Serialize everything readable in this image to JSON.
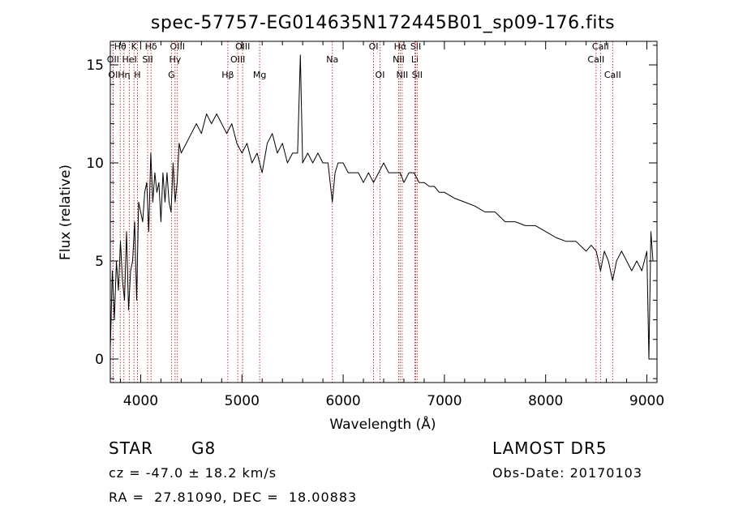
{
  "chart_data": {
    "type": "line",
    "title": "spec-57757-EG014635N172445B01_sp09-176.fits",
    "xlabel": "Wavelength (Å)",
    "ylabel": "Flux (relative)",
    "xlim": [
      3700,
      9100
    ],
    "ylim": [
      -1.2,
      16.2
    ],
    "xticks": [
      "4000",
      "5000",
      "6000",
      "7000",
      "8000",
      "9000"
    ],
    "yticks": [
      "0",
      "5",
      "10",
      "15"
    ],
    "grid": false,
    "line_color": "#000000",
    "marker_color": "#b22222",
    "series": [
      {
        "values_x": [
          3700,
          3720,
          3740,
          3760,
          3780,
          3800,
          3820,
          3840,
          3860,
          3880,
          3900,
          3920,
          3940,
          3960,
          3980,
          4000,
          4020,
          4040,
          4060,
          4080,
          4100,
          4120,
          4140,
          4160,
          4180,
          4200,
          4220,
          4240,
          4260,
          4280,
          4300,
          4320,
          4340,
          4360,
          4380,
          4400,
          4450,
          4500,
          4550,
          4600,
          4650,
          4700,
          4750,
          4800,
          4850,
          4900,
          4950,
          5000,
          5050,
          5100,
          5150,
          5200,
          5250,
          5300,
          5350,
          5400,
          5450,
          5500,
          5550,
          5577,
          5600,
          5650,
          5700,
          5750,
          5800,
          5850,
          5893,
          5920,
          5950,
          6000,
          6050,
          6100,
          6150,
          6200,
          6250,
          6300,
          6350,
          6400,
          6450,
          6500,
          6563,
          6600,
          6650,
          6700,
          6750,
          6800,
          6850,
          6900,
          6950,
          7000,
          7100,
          7200,
          7300,
          7400,
          7500,
          7600,
          7700,
          7800,
          7900,
          8000,
          8100,
          8200,
          8300,
          8400,
          8450,
          8500,
          8542,
          8580,
          8620,
          8662,
          8700,
          8750,
          8800,
          8850,
          8900,
          8950,
          9000,
          9020,
          9040,
          9060
        ],
        "values_y": [
          0.5,
          4.5,
          2.0,
          5.0,
          3.5,
          6.0,
          4.0,
          3.0,
          6.5,
          2.5,
          4.5,
          5.0,
          7.0,
          3.0,
          8.0,
          7.5,
          7.0,
          8.5,
          9.0,
          6.5,
          10.5,
          8.0,
          9.5,
          8.5,
          9.0,
          7.0,
          9.5,
          8.0,
          9.5,
          8.0,
          7.5,
          10.0,
          8.0,
          9.0,
          11.0,
          10.5,
          11.0,
          11.5,
          12.0,
          11.5,
          12.5,
          12.0,
          12.5,
          12.0,
          11.5,
          12.0,
          11.0,
          10.5,
          11.0,
          10.0,
          10.5,
          9.5,
          11.0,
          11.5,
          10.5,
          11.0,
          10.0,
          10.5,
          10.5,
          15.5,
          10.0,
          10.5,
          10.0,
          10.5,
          10.0,
          10.0,
          8.0,
          9.5,
          10.0,
          10.0,
          9.5,
          9.5,
          9.5,
          9.0,
          9.5,
          9.0,
          9.5,
          10.0,
          9.5,
          9.5,
          9.5,
          9.0,
          9.5,
          9.5,
          9.0,
          9.0,
          8.8,
          8.8,
          8.5,
          8.5,
          8.2,
          8.0,
          7.8,
          7.5,
          7.5,
          7.0,
          7.0,
          6.8,
          6.8,
          6.5,
          6.2,
          6.0,
          6.0,
          5.5,
          5.8,
          5.5,
          4.5,
          5.5,
          5.0,
          4.0,
          5.0,
          5.5,
          5.0,
          4.5,
          5.0,
          4.5,
          5.5,
          0.0,
          6.5,
          5.0
        ]
      }
    ],
    "line_markers": [
      {
        "label": "Hθ",
        "x": 3798,
        "row": 0
      },
      {
        "label": "K",
        "x": 3934,
        "row": 0
      },
      {
        "label": "Hδ",
        "x": 4102,
        "row": 0
      },
      {
        "label": "OIII",
        "x": 4363,
        "row": 0
      },
      {
        "label": "OIII",
        "x": 5007,
        "row": 0
      },
      {
        "label": "OI",
        "x": 6300,
        "row": 0
      },
      {
        "label": "Hα",
        "x": 6563,
        "row": 0
      },
      {
        "label": "SII",
        "x": 6717,
        "row": 0
      },
      {
        "label": "CaII",
        "x": 8542,
        "row": 0
      },
      {
        "label": "OII",
        "x": 3727,
        "row": 1
      },
      {
        "label": "HeI",
        "x": 3889,
        "row": 1
      },
      {
        "label": "SII",
        "x": 4069,
        "row": 1
      },
      {
        "label": "Hγ",
        "x": 4340,
        "row": 1
      },
      {
        "label": "OIII",
        "x": 4959,
        "row": 1
      },
      {
        "label": "Na",
        "x": 5893,
        "row": 1
      },
      {
        "label": "NII",
        "x": 6548,
        "row": 1
      },
      {
        "label": "Li",
        "x": 6708,
        "row": 1
      },
      {
        "label": "CaII",
        "x": 8498,
        "row": 1
      },
      {
        "label": "OI",
        "x": 3727,
        "row": 2
      },
      {
        "label": "Hη",
        "x": 3835,
        "row": 2
      },
      {
        "label": "H",
        "x": 3968,
        "row": 2
      },
      {
        "label": "G",
        "x": 4304,
        "row": 2
      },
      {
        "label": "Hβ",
        "x": 4861,
        "row": 2
      },
      {
        "label": "Mg",
        "x": 5175,
        "row": 2
      },
      {
        "label": "OI",
        "x": 6364,
        "row": 2
      },
      {
        "label": "NII",
        "x": 6583,
        "row": 2
      },
      {
        "label": "SII",
        "x": 6731,
        "row": 2
      },
      {
        "label": "CaII",
        "x": 8662,
        "row": 2
      }
    ]
  },
  "info": {
    "class": "STAR",
    "subclass": "G8",
    "survey": "LAMOST DR5",
    "cz": "cz = -47.0 ± 18.2 km/s",
    "obs_date": "Obs-Date: 20170103",
    "coords": "RA =  27.81090, DEC =  18.00883"
  }
}
